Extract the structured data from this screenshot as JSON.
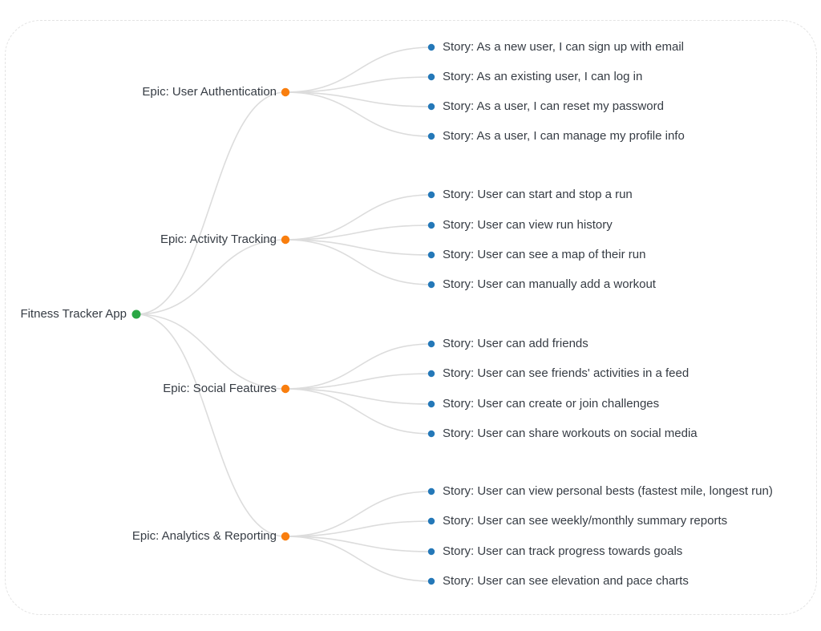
{
  "root": {
    "label": "Fitness Tracker App"
  },
  "epics": [
    {
      "label": "Epic: User Authentication",
      "stories": [
        "Story: As a new user, I can sign up with email",
        "Story: As an existing user, I can log in",
        "Story: As a user, I can reset my password",
        "Story: As a user, I can manage my profile info"
      ]
    },
    {
      "label": "Epic: Activity Tracking",
      "stories": [
        "Story: User can start and stop a run",
        "Story: User can view run history",
        "Story: User can see a map of their run",
        "Story: User can manually add a workout"
      ]
    },
    {
      "label": "Epic: Social Features",
      "stories": [
        "Story: User can add friends",
        "Story: User can see friends' activities in a feed",
        "Story: User can create or join challenges",
        "Story: User can share workouts on social media"
      ]
    },
    {
      "label": "Epic: Analytics & Reporting",
      "stories": [
        "Story: User can view personal bests (fastest mile, longest run)",
        "Story: User can see weekly/monthly summary reports",
        "Story: User can track progress towards goals",
        "Story: User can see elevation and pace charts"
      ]
    }
  ],
  "colors": {
    "root_dot": "#2aa745",
    "epic_dot": "#f97e0e",
    "story_dot": "#2478b8",
    "link": "#dcdcdc",
    "text": "#363c44",
    "canvas_border": "#e3e3e3"
  }
}
